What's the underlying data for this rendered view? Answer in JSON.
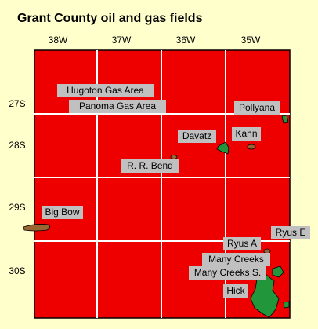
{
  "title": "Grant County oil and gas fields",
  "columns": [
    "38W",
    "37W",
    "36W",
    "35W"
  ],
  "rows": [
    "27S",
    "28S",
    "29S",
    "30S"
  ],
  "fields": [
    "Hugoton Gas Area",
    "Panoma Gas Area",
    "Pollyana",
    "Davatz",
    "Kahn",
    "R. R. Bend",
    "Big Bow",
    "Ryus E",
    "Ryus A",
    "Many Creeks",
    "Many Creeks S.",
    "Hick"
  ]
}
